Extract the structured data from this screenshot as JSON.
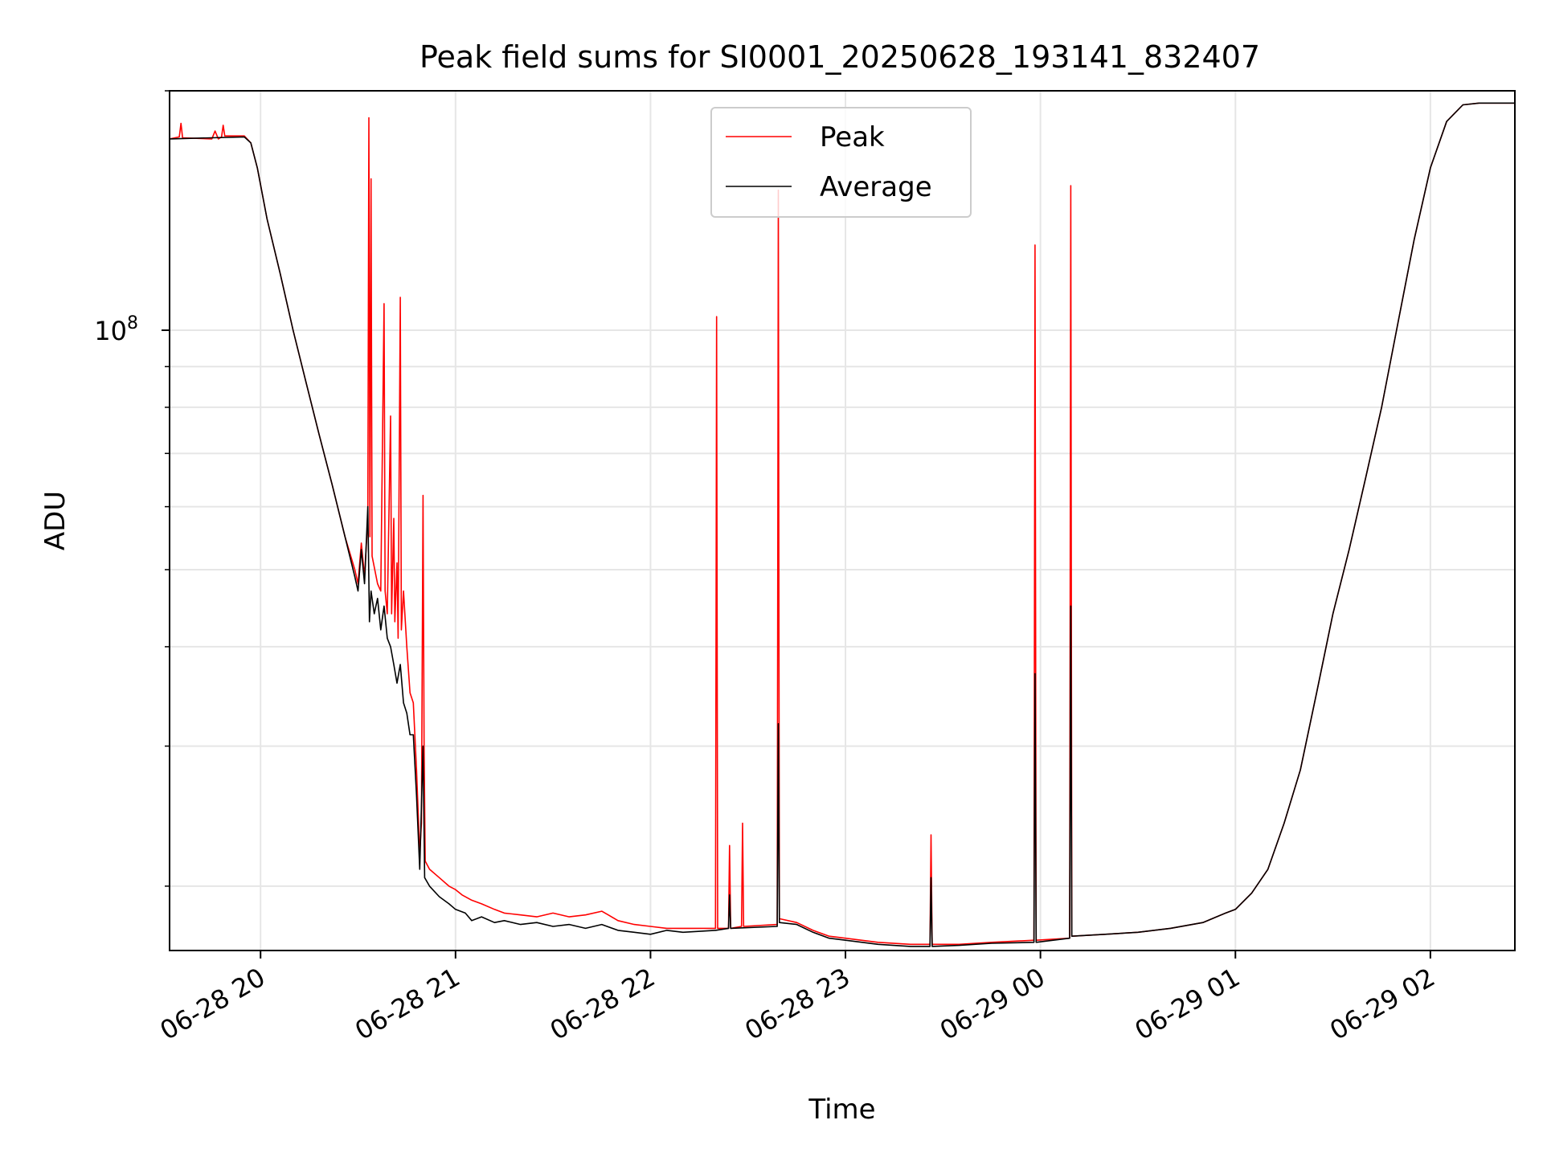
{
  "chart_data": {
    "type": "line",
    "title": "Peak field sums for SI0001_20250628_193141_832407",
    "xlabel": "Time",
    "ylabel": "ADU",
    "yscale": "log",
    "xlim": [
      "2025-06-28T19:32",
      "2025-06-29T02:26"
    ],
    "ylim": [
      16600000,
      200000000
    ],
    "grid": true,
    "legend_position": "upper center",
    "x_ticks": [
      {
        "t": "2025-06-28T20:00",
        "label": "06-28 20"
      },
      {
        "t": "2025-06-28T21:00",
        "label": "06-28 21"
      },
      {
        "t": "2025-06-28T22:00",
        "label": "06-28 22"
      },
      {
        "t": "2025-06-28T23:00",
        "label": "06-28 23"
      },
      {
        "t": "2025-06-29T00:00",
        "label": "06-29 00"
      },
      {
        "t": "2025-06-29T01:00",
        "label": "06-29 01"
      },
      {
        "t": "2025-06-29T02:00",
        "label": "06-29 02"
      }
    ],
    "y_major_ticks": [
      {
        "v": 100000000,
        "label": "10",
        "exp": "8"
      }
    ],
    "y_minor_ticks": [
      20000000,
      30000000,
      40000000,
      50000000,
      60000000,
      70000000,
      80000000,
      90000000,
      200000000
    ],
    "series": [
      {
        "name": "Peak",
        "color": "#ff0000",
        "points": [
          [
            "2025-06-28T19:32",
            174000000
          ],
          [
            "2025-06-28T19:35",
            175000000
          ],
          [
            "2025-06-28T19:35:30",
            182000000
          ],
          [
            "2025-06-28T19:36",
            174500000
          ],
          [
            "2025-06-28T19:45",
            174000000
          ],
          [
            "2025-06-28T19:46",
            178000000
          ],
          [
            "2025-06-28T19:47",
            174000000
          ],
          [
            "2025-06-28T19:48",
            175000000
          ],
          [
            "2025-06-28T19:48:30",
            181000000
          ],
          [
            "2025-06-28T19:49",
            175500000
          ],
          [
            "2025-06-28T19:55",
            175500000
          ],
          [
            "2025-06-28T19:57",
            172000000
          ],
          [
            "2025-06-28T19:59",
            160000000
          ],
          [
            "2025-06-28T20:02",
            138000000
          ],
          [
            "2025-06-28T20:06",
            118000000
          ],
          [
            "2025-06-28T20:10",
            100000000
          ],
          [
            "2025-06-28T20:14",
            86000000
          ],
          [
            "2025-06-28T20:18",
            74000000
          ],
          [
            "2025-06-28T20:22",
            64000000
          ],
          [
            "2025-06-28T20:26",
            55000000
          ],
          [
            "2025-06-28T20:29",
            50000000
          ],
          [
            "2025-06-28T20:30",
            48000000
          ],
          [
            "2025-06-28T20:31",
            54000000
          ],
          [
            "2025-06-28T20:32",
            49000000
          ],
          [
            "2025-06-28T20:33",
            58000000
          ],
          [
            "2025-06-28T20:33:20",
            185000000
          ],
          [
            "2025-06-28T20:33:40",
            55000000
          ],
          [
            "2025-06-28T20:34",
            155000000
          ],
          [
            "2025-06-28T20:34:20",
            52000000
          ],
          [
            "2025-06-28T20:36",
            48000000
          ],
          [
            "2025-06-28T20:37",
            47000000
          ],
          [
            "2025-06-28T20:38",
            108000000
          ],
          [
            "2025-06-28T20:38:20",
            47000000
          ],
          [
            "2025-06-28T20:39",
            44000000
          ],
          [
            "2025-06-28T20:40",
            78000000
          ],
          [
            "2025-06-28T20:40:20",
            44000000
          ],
          [
            "2025-06-28T20:41",
            58000000
          ],
          [
            "2025-06-28T20:41:20",
            43000000
          ],
          [
            "2025-06-28T20:42",
            51000000
          ],
          [
            "2025-06-28T20:42:20",
            41000000
          ],
          [
            "2025-06-28T20:43",
            110000000
          ],
          [
            "2025-06-28T20:43:20",
            42000000
          ],
          [
            "2025-06-28T20:44",
            47000000
          ],
          [
            "2025-06-28T20:45",
            40000000
          ],
          [
            "2025-06-28T20:46",
            35000000
          ],
          [
            "2025-06-28T20:47",
            34000000
          ],
          [
            "2025-06-28T20:48",
            28000000
          ],
          [
            "2025-06-28T20:49",
            22000000
          ],
          [
            "2025-06-28T20:49:30",
            24000000
          ],
          [
            "2025-06-28T20:50",
            62000000
          ],
          [
            "2025-06-28T20:50:20",
            30000000
          ],
          [
            "2025-06-28T20:50:40",
            21500000
          ],
          [
            "2025-06-28T20:52",
            21000000
          ],
          [
            "2025-06-28T20:55",
            20500000
          ],
          [
            "2025-06-28T20:58",
            20000000
          ],
          [
            "2025-06-28T21:00",
            19800000
          ],
          [
            "2025-06-28T21:02",
            19500000
          ],
          [
            "2025-06-28T21:05",
            19200000
          ],
          [
            "2025-06-28T21:08",
            19000000
          ],
          [
            "2025-06-28T21:12",
            18700000
          ],
          [
            "2025-06-28T21:15",
            18500000
          ],
          [
            "2025-06-28T21:20",
            18400000
          ],
          [
            "2025-06-28T21:25",
            18300000
          ],
          [
            "2025-06-28T21:30",
            18500000
          ],
          [
            "2025-06-28T21:35",
            18300000
          ],
          [
            "2025-06-28T21:40",
            18400000
          ],
          [
            "2025-06-28T21:45",
            18600000
          ],
          [
            "2025-06-28T21:47",
            18400000
          ],
          [
            "2025-06-28T21:50",
            18100000
          ],
          [
            "2025-06-28T21:55",
            17900000
          ],
          [
            "2025-06-28T22:00",
            17800000
          ],
          [
            "2025-06-28T22:05",
            17700000
          ],
          [
            "2025-06-28T22:10",
            17700000
          ],
          [
            "2025-06-28T22:20",
            17700000
          ],
          [
            "2025-06-28T22:20:20",
            104000000
          ],
          [
            "2025-06-28T22:20:40",
            17700000
          ],
          [
            "2025-06-28T22:24",
            17700000
          ],
          [
            "2025-06-28T22:24:20",
            22500000
          ],
          [
            "2025-06-28T22:24:40",
            17700000
          ],
          [
            "2025-06-28T22:28",
            17800000
          ],
          [
            "2025-06-28T22:28:20",
            24000000
          ],
          [
            "2025-06-28T22:28:40",
            17800000
          ],
          [
            "2025-06-28T22:39",
            17900000
          ],
          [
            "2025-06-28T22:39:20",
            150000000
          ],
          [
            "2025-06-28T22:39:40",
            18200000
          ],
          [
            "2025-06-28T22:45",
            18000000
          ],
          [
            "2025-06-28T22:50",
            17600000
          ],
          [
            "2025-06-28T22:55",
            17300000
          ],
          [
            "2025-06-28T23:00",
            17200000
          ],
          [
            "2025-06-28T23:10",
            17000000
          ],
          [
            "2025-06-28T23:20",
            16900000
          ],
          [
            "2025-06-28T23:26",
            16900000
          ],
          [
            "2025-06-28T23:26:20",
            23200000
          ],
          [
            "2025-06-28T23:26:40",
            16900000
          ],
          [
            "2025-06-28T23:35",
            16900000
          ],
          [
            "2025-06-28T23:45",
            17000000
          ],
          [
            "2025-06-28T23:58",
            17100000
          ],
          [
            "2025-06-28T23:58:20",
            128000000
          ],
          [
            "2025-06-28T23:58:40",
            17100000
          ],
          [
            "2025-06-29T00:09",
            17200000
          ],
          [
            "2025-06-29T00:09:20",
            152000000
          ],
          [
            "2025-06-29T00:09:40",
            17300000
          ],
          [
            "2025-06-29T00:20",
            17400000
          ],
          [
            "2025-06-29T00:30",
            17500000
          ],
          [
            "2025-06-29T00:40",
            17700000
          ],
          [
            "2025-06-29T00:50",
            18000000
          ],
          [
            "2025-06-29T00:57",
            18500000
          ],
          [
            "2025-06-29T01:00",
            18700000
          ],
          [
            "2025-06-29T01:05",
            19600000
          ],
          [
            "2025-06-29T01:10",
            21000000
          ],
          [
            "2025-06-29T01:15",
            24000000
          ],
          [
            "2025-06-29T01:20",
            28000000
          ],
          [
            "2025-06-29T01:25",
            35000000
          ],
          [
            "2025-06-29T01:30",
            44000000
          ],
          [
            "2025-06-29T01:35",
            53000000
          ],
          [
            "2025-06-29T01:40",
            65000000
          ],
          [
            "2025-06-29T01:45",
            80000000
          ],
          [
            "2025-06-29T01:50",
            102000000
          ],
          [
            "2025-06-29T01:55",
            130000000
          ],
          [
            "2025-06-29T02:00",
            160000000
          ],
          [
            "2025-06-29T02:05",
            183000000
          ],
          [
            "2025-06-29T02:10",
            192000000
          ],
          [
            "2025-06-29T02:15",
            193000000
          ],
          [
            "2025-06-29T02:26",
            193000000
          ]
        ]
      },
      {
        "name": "Average",
        "color": "#000000",
        "points": [
          [
            "2025-06-28T19:32",
            174000000
          ],
          [
            "2025-06-28T19:55",
            175000000
          ],
          [
            "2025-06-28T19:57",
            172000000
          ],
          [
            "2025-06-28T19:59",
            160000000
          ],
          [
            "2025-06-28T20:02",
            138000000
          ],
          [
            "2025-06-28T20:06",
            118000000
          ],
          [
            "2025-06-28T20:10",
            100000000
          ],
          [
            "2025-06-28T20:14",
            86000000
          ],
          [
            "2025-06-28T20:18",
            74000000
          ],
          [
            "2025-06-28T20:22",
            64000000
          ],
          [
            "2025-06-28T20:26",
            55000000
          ],
          [
            "2025-06-28T20:29",
            49000000
          ],
          [
            "2025-06-28T20:30",
            47000000
          ],
          [
            "2025-06-28T20:31",
            53000000
          ],
          [
            "2025-06-28T20:32",
            48000000
          ],
          [
            "2025-06-28T20:33",
            60000000
          ],
          [
            "2025-06-28T20:33:30",
            43000000
          ],
          [
            "2025-06-28T20:34",
            47000000
          ],
          [
            "2025-06-28T20:35",
            44000000
          ],
          [
            "2025-06-28T20:36",
            46000000
          ],
          [
            "2025-06-28T20:37",
            42000000
          ],
          [
            "2025-06-28T20:38",
            45000000
          ],
          [
            "2025-06-28T20:39",
            41000000
          ],
          [
            "2025-06-28T20:40",
            40000000
          ],
          [
            "2025-06-28T20:41",
            38000000
          ],
          [
            "2025-06-28T20:42",
            36000000
          ],
          [
            "2025-06-28T20:43",
            38000000
          ],
          [
            "2025-06-28T20:44",
            34000000
          ],
          [
            "2025-06-28T20:45",
            33000000
          ],
          [
            "2025-06-28T20:46",
            31000000
          ],
          [
            "2025-06-28T20:47",
            31000000
          ],
          [
            "2025-06-28T20:48",
            26000000
          ],
          [
            "2025-06-28T20:49",
            21000000
          ],
          [
            "2025-06-28T20:50",
            30000000
          ],
          [
            "2025-06-28T20:50:30",
            20500000
          ],
          [
            "2025-06-28T20:52",
            20000000
          ],
          [
            "2025-06-28T20:55",
            19400000
          ],
          [
            "2025-06-28T20:58",
            19000000
          ],
          [
            "2025-06-28T21:00",
            18700000
          ],
          [
            "2025-06-28T21:03",
            18500000
          ],
          [
            "2025-06-28T21:05",
            18100000
          ],
          [
            "2025-06-28T21:08",
            18300000
          ],
          [
            "2025-06-28T21:12",
            18000000
          ],
          [
            "2025-06-28T21:15",
            18100000
          ],
          [
            "2025-06-28T21:20",
            17900000
          ],
          [
            "2025-06-28T21:25",
            18000000
          ],
          [
            "2025-06-28T21:30",
            17800000
          ],
          [
            "2025-06-28T21:35",
            17900000
          ],
          [
            "2025-06-28T21:40",
            17700000
          ],
          [
            "2025-06-28T21:45",
            17900000
          ],
          [
            "2025-06-28T21:50",
            17600000
          ],
          [
            "2025-06-28T21:55",
            17500000
          ],
          [
            "2025-06-28T22:00",
            17400000
          ],
          [
            "2025-06-28T22:05",
            17600000
          ],
          [
            "2025-06-28T22:10",
            17500000
          ],
          [
            "2025-06-28T22:20",
            17600000
          ],
          [
            "2025-06-28T22:24",
            17700000
          ],
          [
            "2025-06-28T22:24:20",
            19500000
          ],
          [
            "2025-06-28T22:24:40",
            17700000
          ],
          [
            "2025-06-28T22:39",
            17800000
          ],
          [
            "2025-06-28T22:39:20",
            32000000
          ],
          [
            "2025-06-28T22:39:40",
            18000000
          ],
          [
            "2025-06-28T22:45",
            17900000
          ],
          [
            "2025-06-28T22:50",
            17500000
          ],
          [
            "2025-06-28T22:55",
            17200000
          ],
          [
            "2025-06-28T23:00",
            17100000
          ],
          [
            "2025-06-28T23:10",
            16900000
          ],
          [
            "2025-06-28T23:20",
            16800000
          ],
          [
            "2025-06-28T23:26",
            16800000
          ],
          [
            "2025-06-28T23:26:20",
            20500000
          ],
          [
            "2025-06-28T23:26:40",
            16800000
          ],
          [
            "2025-06-28T23:35",
            16850000
          ],
          [
            "2025-06-28T23:45",
            16950000
          ],
          [
            "2025-06-28T23:58",
            17000000
          ],
          [
            "2025-06-28T23:58:20",
            37000000
          ],
          [
            "2025-06-28T23:58:40",
            17000000
          ],
          [
            "2025-06-29T00:09",
            17200000
          ],
          [
            "2025-06-29T00:09:20",
            45000000
          ],
          [
            "2025-06-29T00:09:40",
            17300000
          ],
          [
            "2025-06-29T00:20",
            17400000
          ],
          [
            "2025-06-29T00:30",
            17500000
          ],
          [
            "2025-06-29T00:40",
            17700000
          ],
          [
            "2025-06-29T00:50",
            18000000
          ],
          [
            "2025-06-29T00:57",
            18500000
          ],
          [
            "2025-06-29T01:00",
            18700000
          ],
          [
            "2025-06-29T01:05",
            19600000
          ],
          [
            "2025-06-29T01:10",
            21000000
          ],
          [
            "2025-06-29T01:15",
            24000000
          ],
          [
            "2025-06-29T01:20",
            28000000
          ],
          [
            "2025-06-29T01:25",
            35000000
          ],
          [
            "2025-06-29T01:30",
            44000000
          ],
          [
            "2025-06-29T01:35",
            53000000
          ],
          [
            "2025-06-29T01:40",
            65000000
          ],
          [
            "2025-06-29T01:45",
            80000000
          ],
          [
            "2025-06-29T01:50",
            102000000
          ],
          [
            "2025-06-29T01:55",
            130000000
          ],
          [
            "2025-06-29T02:00",
            160000000
          ],
          [
            "2025-06-29T02:05",
            183000000
          ],
          [
            "2025-06-29T02:10",
            192000000
          ],
          [
            "2025-06-29T02:15",
            193000000
          ],
          [
            "2025-06-29T02:26",
            193000000
          ]
        ]
      }
    ]
  }
}
